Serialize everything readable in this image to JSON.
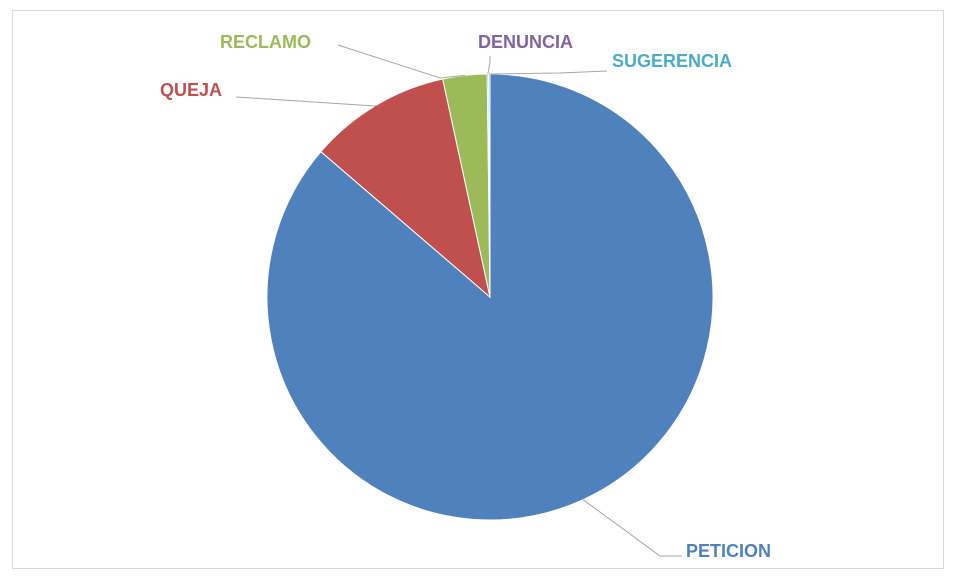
{
  "chart_data": {
    "type": "pie",
    "categories": [
      "PETICION",
      "QUEJA",
      "RECLAMO",
      "DENUNCIA",
      "SUGERENCIA"
    ],
    "values": [
      86.3,
      10.3,
      3.2,
      0.1,
      0.1
    ],
    "colors": [
      "#4f81bd",
      "#c0504d",
      "#9bbb59",
      "#8064a2",
      "#4bacc6"
    ],
    "start_angle": 0,
    "direction": "clockwise"
  }
}
